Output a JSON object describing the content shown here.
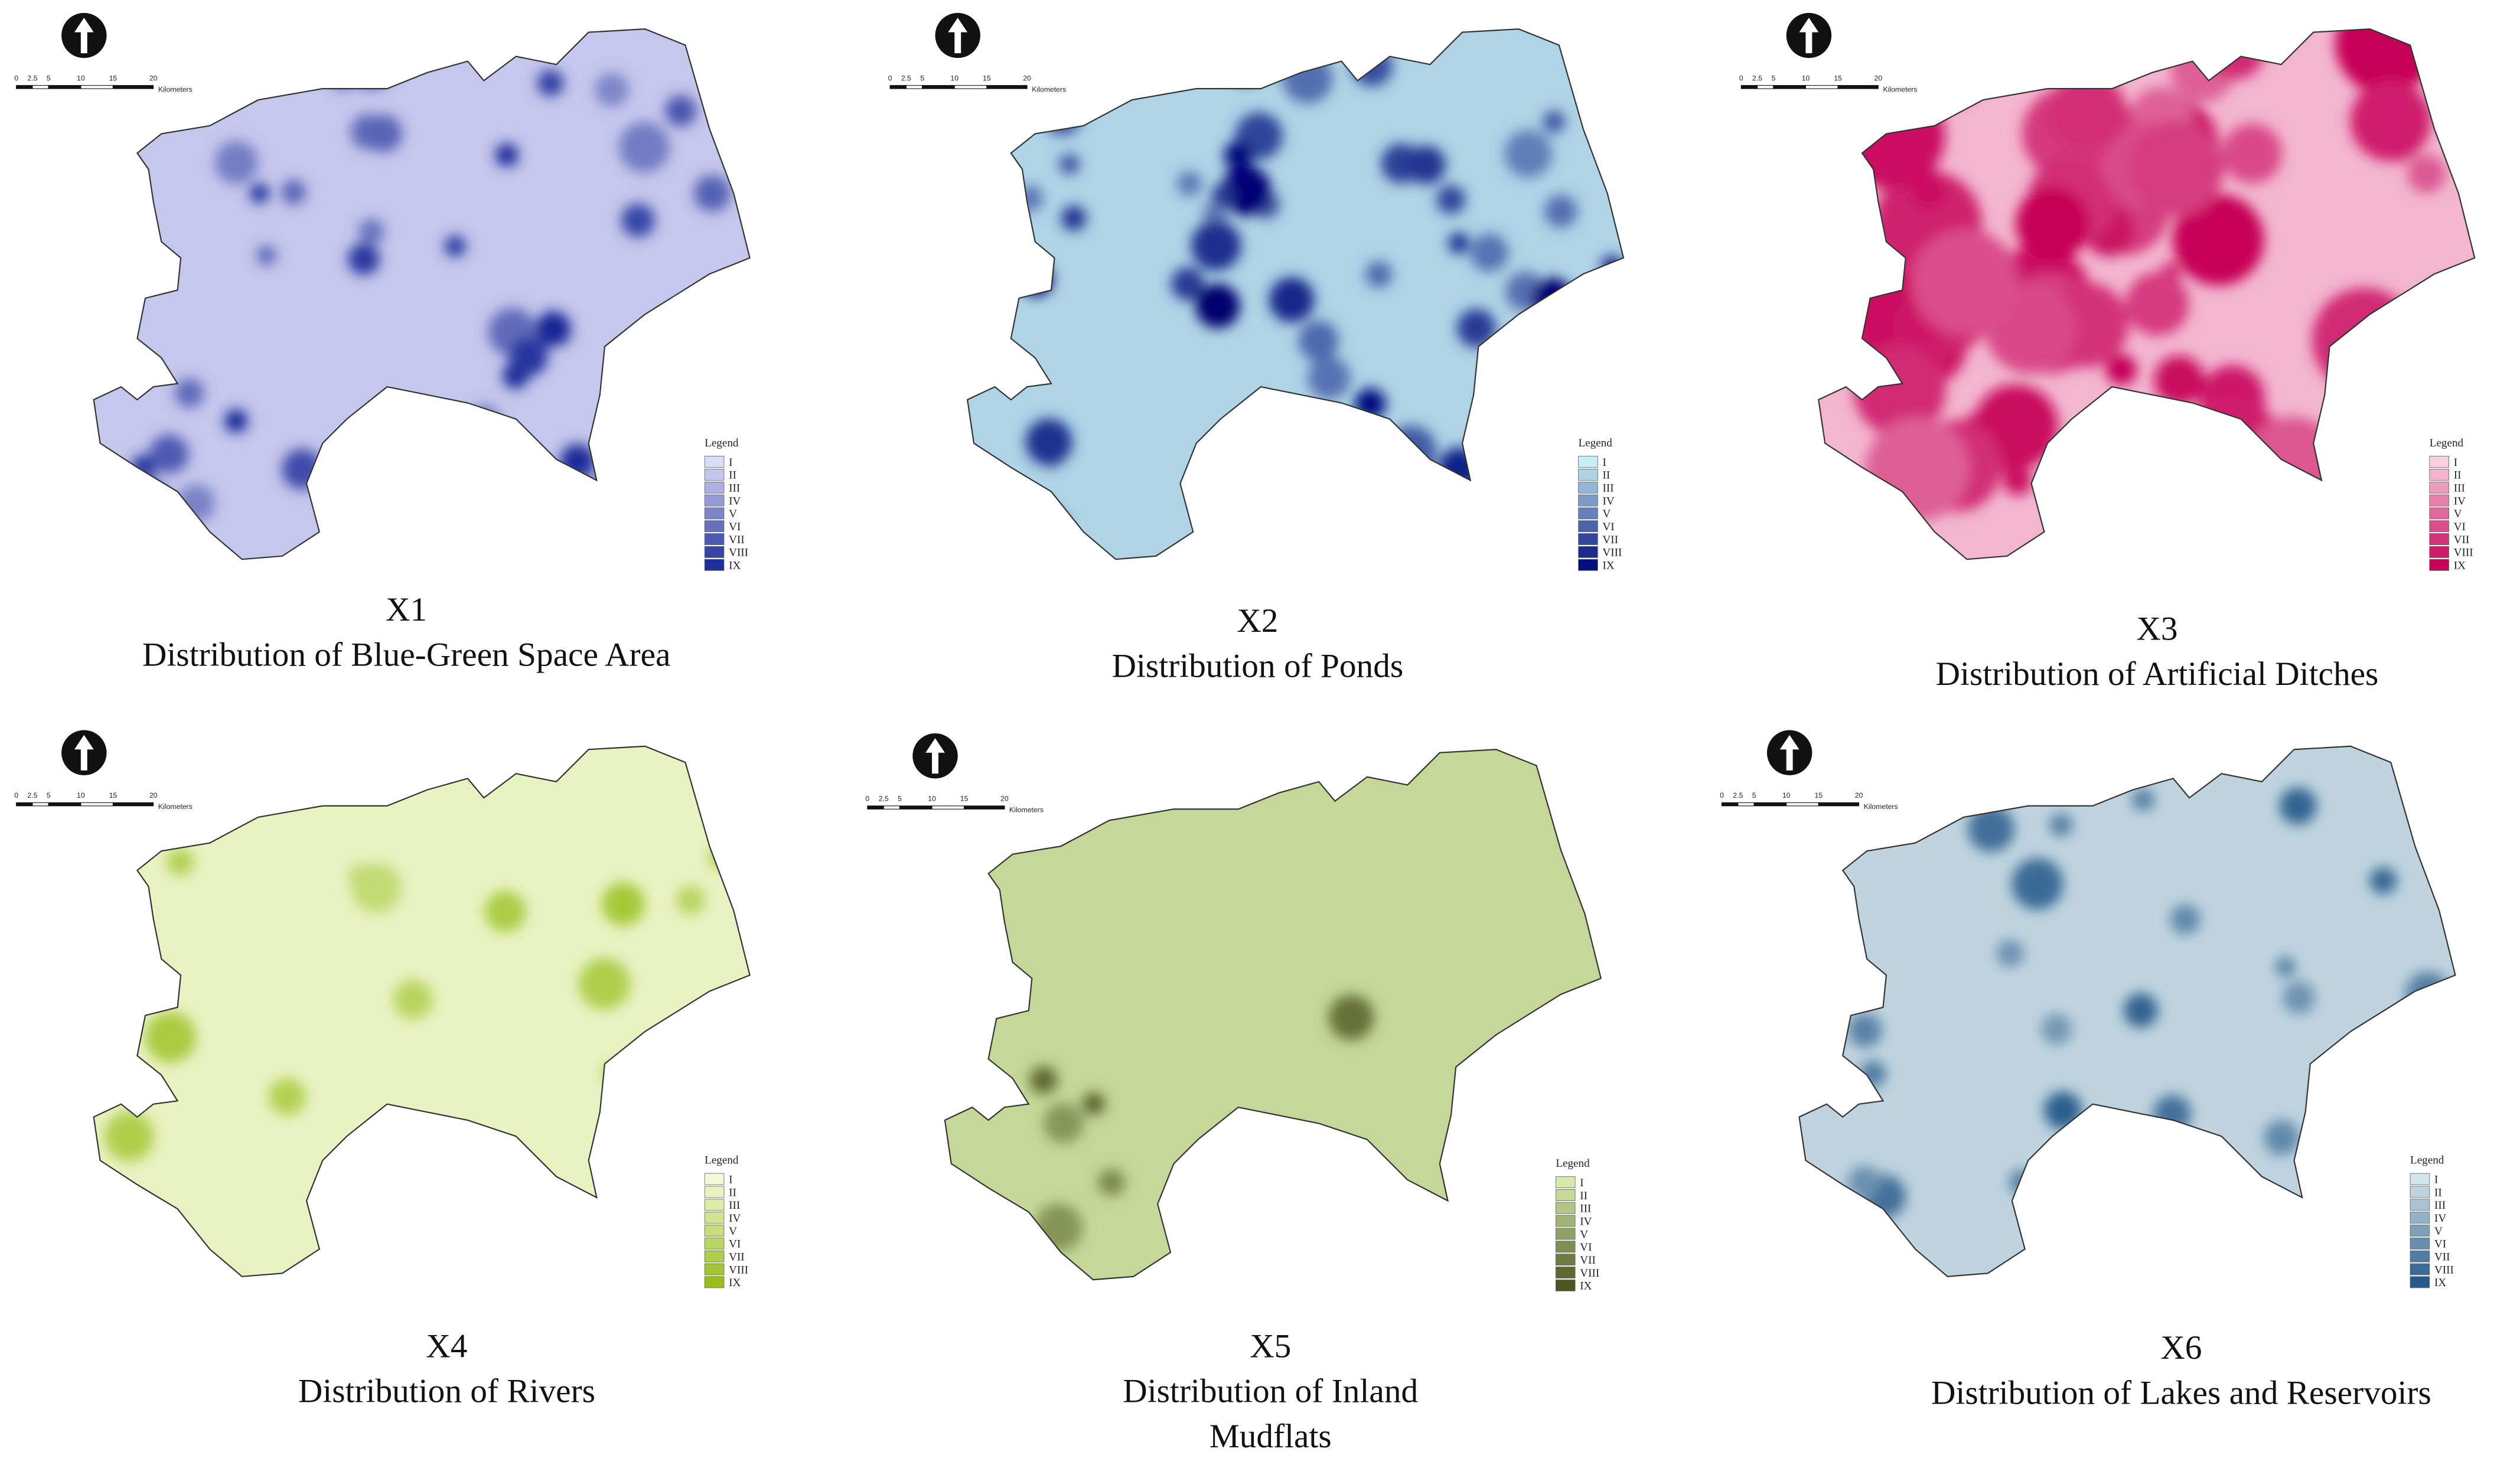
{
  "panels": [
    {
      "id": "X1",
      "title_lines": [
        "Distribution of Blue-Green Space Area"
      ],
      "color_ramp": [
        "#dcdcf7",
        "#1f2f9a"
      ],
      "legend": {
        "title": "Legend",
        "classes": [
          "I",
          "II",
          "III",
          "IV",
          "V",
          "VI",
          "VII",
          "VIII",
          "IX"
        ]
      },
      "scale_bar": {
        "ticks": [
          "0",
          "2.5",
          "5",
          "10",
          "15",
          "20"
        ],
        "unit": "Kilometers"
      }
    },
    {
      "id": "X2",
      "title_lines": [
        "Distribution of Ponds"
      ],
      "color_ramp": [
        "#c6eff4",
        "#00107e"
      ],
      "legend": {
        "title": "Legend",
        "classes": [
          "I",
          "II",
          "III",
          "IV",
          "V",
          "VI",
          "VII",
          "VIII",
          "IX"
        ]
      },
      "scale_bar": {
        "ticks": [
          "0",
          "2.5",
          "5",
          "10",
          "15",
          "20"
        ],
        "unit": "Kilometers"
      }
    },
    {
      "id": "X3",
      "title_lines": [
        "Distribution of Artificial Ditches"
      ],
      "color_ramp": [
        "#f9cfdf",
        "#c70058"
      ],
      "legend": {
        "title": "Legend",
        "classes": [
          "I",
          "II",
          "III",
          "IV",
          "V",
          "VI",
          "VII",
          "VIII",
          "IX"
        ]
      },
      "scale_bar": {
        "ticks": [
          "0",
          "2.5",
          "5",
          "10",
          "15",
          "20"
        ],
        "unit": "Kilometers"
      }
    },
    {
      "id": "X4",
      "title_lines": [
        "Distribution of Rivers"
      ],
      "color_ramp": [
        "#f3fad9",
        "#98c01a"
      ],
      "legend": {
        "title": "Legend",
        "classes": [
          "I",
          "II",
          "III",
          "IV",
          "V",
          "VI",
          "VII",
          "VIII",
          "IX"
        ]
      },
      "scale_bar": {
        "ticks": [
          "0",
          "2.5",
          "5",
          "10",
          "15",
          "20"
        ],
        "unit": "Kilometers"
      }
    },
    {
      "id": "X5",
      "title_lines": [
        "Distribution of Inland",
        "Mudflats"
      ],
      "color_ramp": [
        "#d5eaa9",
        "#4c5620"
      ],
      "legend": {
        "title": "Legend",
        "classes": [
          "I",
          "II",
          "III",
          "IV",
          "V",
          "VI",
          "VII",
          "VIII",
          "IX"
        ]
      },
      "scale_bar": {
        "ticks": [
          "0",
          "2.5",
          "5",
          "10",
          "15",
          "20"
        ],
        "unit": "Kilometers"
      }
    },
    {
      "id": "X6",
      "title_lines": [
        "Distribution of Lakes and Reservoirs"
      ],
      "color_ramp": [
        "#d4e5eb",
        "#265a8a"
      ],
      "legend": {
        "title": "Legend",
        "classes": [
          "I",
          "II",
          "III",
          "IV",
          "V",
          "VI",
          "VII",
          "VIII",
          "IX"
        ]
      },
      "scale_bar": {
        "ticks": [
          "0",
          "2.5",
          "5",
          "10",
          "15",
          "20"
        ],
        "unit": "Kilometers"
      }
    }
  ]
}
